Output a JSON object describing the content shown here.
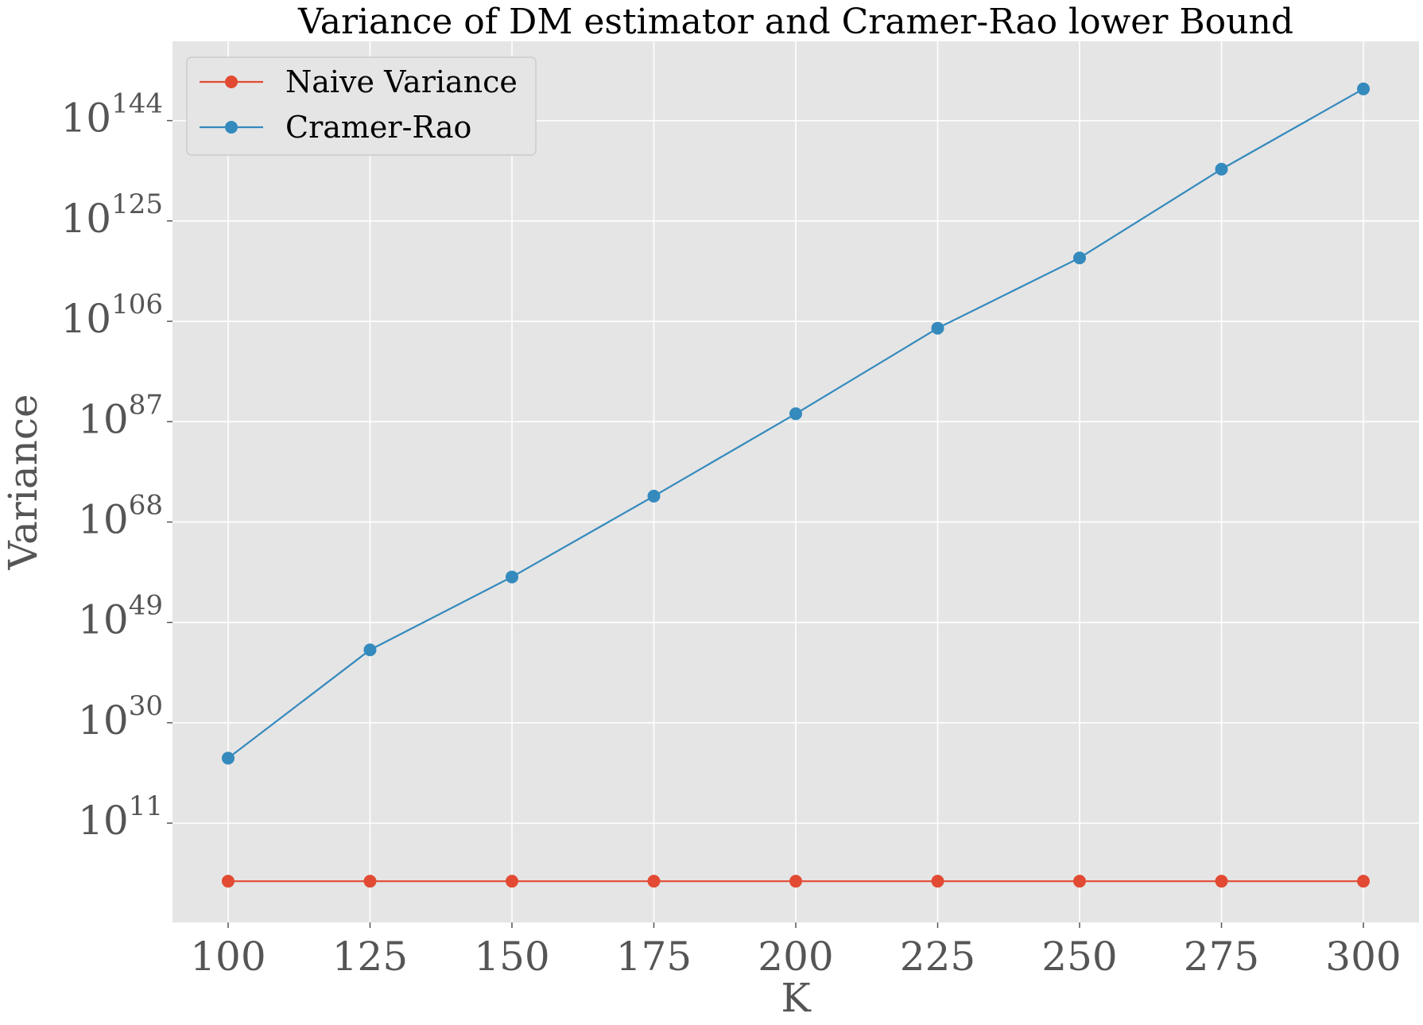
{
  "chart_data": {
    "type": "line",
    "title": "Variance of DM estimator and Cramer-Rao lower Bound",
    "xlabel": "K",
    "ylabel": "Variance",
    "y_scale": "log",
    "x": [
      100,
      125,
      150,
      175,
      200,
      225,
      250,
      275,
      300
    ],
    "xticks": [
      100,
      125,
      150,
      175,
      200,
      225,
      250,
      275,
      300
    ],
    "xlim": [
      90.2,
      309.8
    ],
    "ylim_log10": [
      -7.8,
      159.0
    ],
    "yticks": [
      {
        "base": "10",
        "exp": "11",
        "log10": 11
      },
      {
        "base": "10",
        "exp": "30",
        "log10": 30
      },
      {
        "base": "10",
        "exp": "49",
        "log10": 49
      },
      {
        "base": "10",
        "exp": "68",
        "log10": 68
      },
      {
        "base": "10",
        "exp": "87",
        "log10": 87
      },
      {
        "base": "10",
        "exp": "106",
        "log10": 106
      },
      {
        "base": "10",
        "exp": "125",
        "log10": 125
      },
      {
        "base": "10",
        "exp": "144",
        "log10": 144
      }
    ],
    "series": [
      {
        "name": "Naive Variance",
        "color": "#E24A33",
        "log10_values": [
          0.0,
          0.0,
          0.0,
          0.0,
          0.0,
          0.0,
          0.0,
          0.0,
          0.0
        ]
      },
      {
        "name": "Cramer-Rao",
        "color": "#348ABD",
        "log10_values": [
          23.3,
          43.8,
          57.6,
          72.9,
          88.5,
          104.7,
          118.0,
          134.8,
          150.0
        ]
      }
    ],
    "grid": true,
    "legend_position": "top-left",
    "background_color": "#E5E5E5"
  }
}
